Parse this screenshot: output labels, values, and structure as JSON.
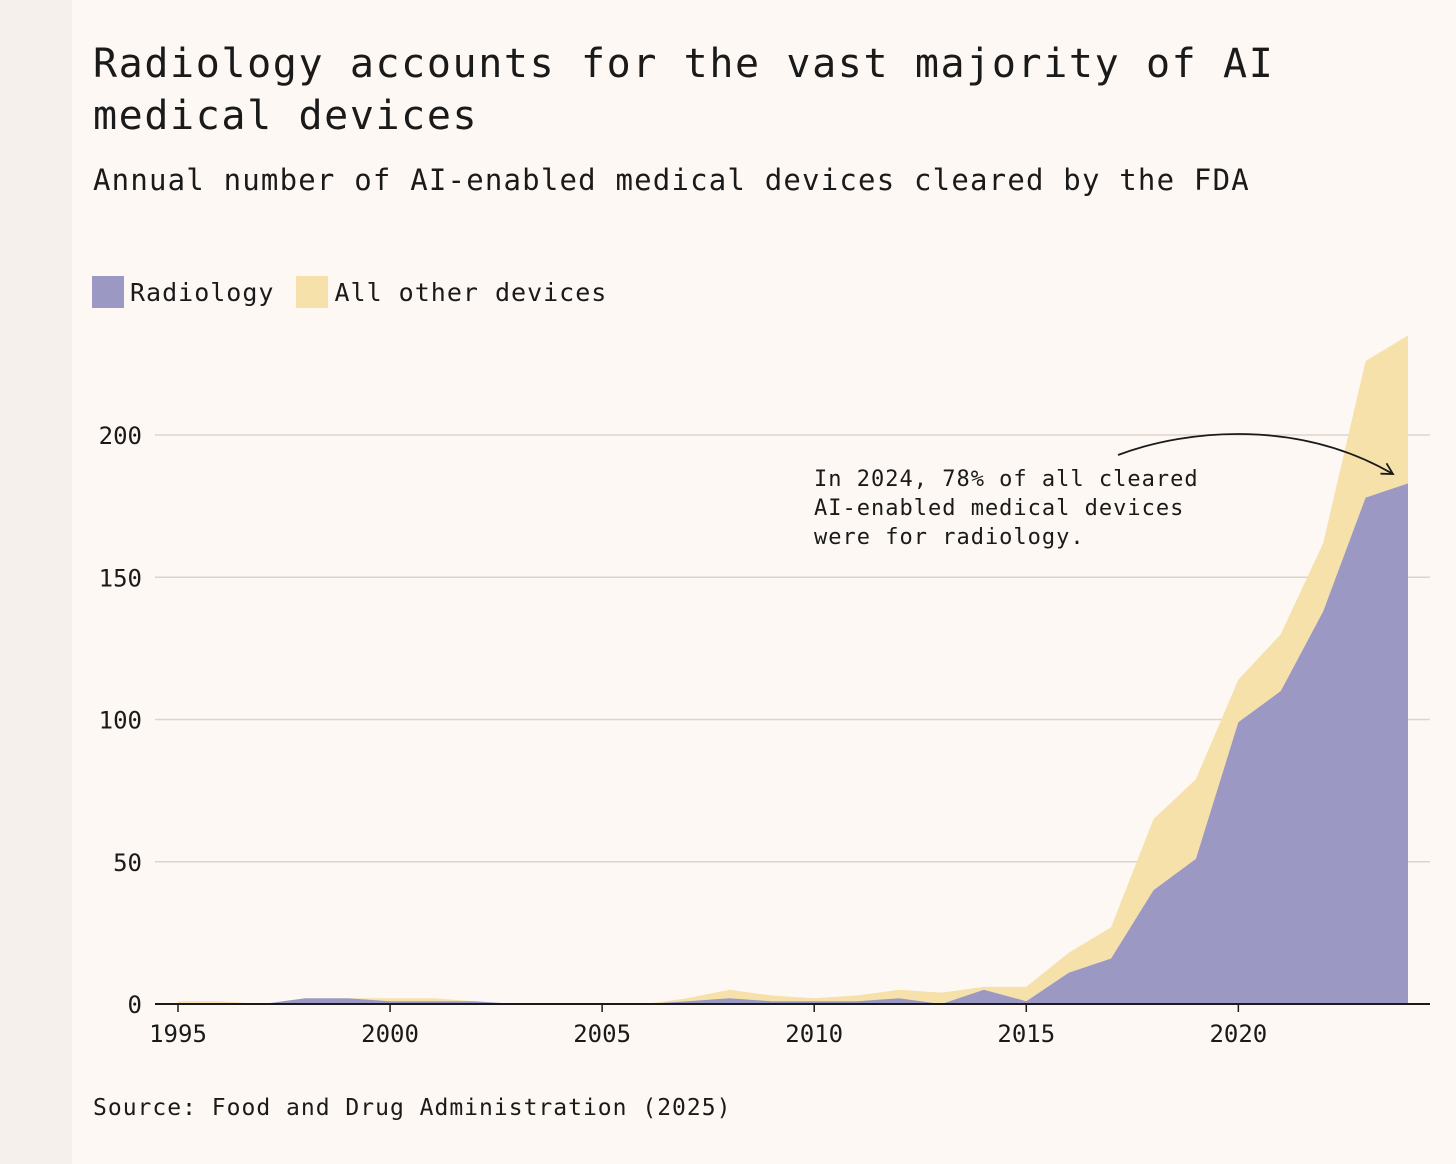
{
  "header": {
    "title": "Radiology accounts for the vast majority of AI medical devices",
    "subtitle": "Annual number of AI-enabled medical devices cleared by the FDA"
  },
  "legend": {
    "items": [
      {
        "label": "Radiology",
        "color": "#9b98c4"
      },
      {
        "label": "All other devices",
        "color": "#f6e1ab"
      }
    ]
  },
  "annotation": {
    "lines": [
      "In 2024, 78% of all cleared",
      "AI-enabled medical devices",
      "were for radiology."
    ]
  },
  "source": "Source: Food and Drug Administration (2025)",
  "chart_data": {
    "type": "area",
    "stacked": true,
    "title": "Radiology accounts for the vast majority of AI medical devices",
    "subtitle": "Annual number of AI-enabled medical devices cleared by the FDA",
    "xlabel": "",
    "ylabel": "",
    "x": [
      1995,
      1996,
      1997,
      1998,
      1999,
      2000,
      2001,
      2002,
      2003,
      2004,
      2005,
      2006,
      2007,
      2008,
      2009,
      2010,
      2011,
      2012,
      2013,
      2014,
      2015,
      2016,
      2017,
      2018,
      2019,
      2020,
      2021,
      2022,
      2023,
      2024
    ],
    "xlim": [
      1995,
      2024
    ],
    "xticks": [
      1995,
      2000,
      2005,
      2010,
      2015,
      2020
    ],
    "ylim": [
      0,
      235
    ],
    "yticks": [
      0,
      50,
      100,
      150,
      200
    ],
    "grid": true,
    "legend_position": "top-left",
    "series": [
      {
        "name": "Radiology",
        "color": "#9b98c4",
        "values": [
          0,
          0,
          0,
          2,
          2,
          1,
          1,
          1,
          0,
          0,
          0,
          0,
          1,
          2,
          1,
          1,
          1,
          2,
          0,
          5,
          1,
          11,
          16,
          40,
          51,
          99,
          110,
          138,
          178,
          183
        ]
      },
      {
        "name": "All other devices",
        "color": "#f6e1ab",
        "values": [
          1,
          1,
          0,
          0,
          0,
          1,
          1,
          0,
          0,
          0,
          0,
          0,
          1,
          3,
          2,
          1,
          2,
          3,
          4,
          1,
          5,
          7,
          11,
          25,
          28,
          15,
          20,
          24,
          48,
          52
        ]
      }
    ]
  }
}
